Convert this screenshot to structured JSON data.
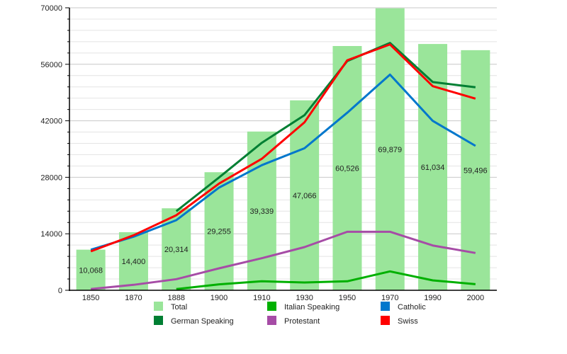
{
  "chart_data": {
    "type": "bar",
    "title": "",
    "xlabel": "",
    "ylabel": "",
    "ylim": [
      0,
      70000
    ],
    "yticks": [
      0,
      14000,
      28000,
      42000,
      56000,
      70000
    ],
    "ytick_labels": [
      "0",
      "14000",
      "28000",
      "42000",
      "56000",
      "70000"
    ],
    "minor_step": 2800,
    "grid": true,
    "legend_position": "bottom",
    "categories": [
      "1850",
      "1870",
      "1888",
      "1900",
      "1910",
      "1930",
      "1950",
      "1970",
      "1990",
      "2000"
    ],
    "bars": {
      "name": "Total",
      "color": "#9ae59a",
      "values": [
        10068,
        14400,
        20314,
        29255,
        39339,
        47066,
        60526,
        69879,
        61034,
        59496
      ],
      "labels": [
        "10,068",
        "14,400",
        "20,314",
        "29,255",
        "39,339",
        "47,066",
        "60,526",
        "69,879",
        "61,034",
        "59,496"
      ]
    },
    "series": [
      {
        "name": "German Speaking",
        "type": "line",
        "color": "#007f33",
        "values": [
          null,
          null,
          19600,
          27950,
          36540,
          43400,
          56800,
          61300,
          51600,
          50300
        ]
      },
      {
        "name": "Italian Speaking",
        "type": "line",
        "color": "#00b000",
        "values": [
          null,
          null,
          300,
          1460,
          2230,
          1930,
          2230,
          4680,
          2460,
          1520
        ]
      },
      {
        "name": "Catholic",
        "type": "line",
        "color": "#0077cc",
        "values": [
          10050,
          13280,
          17370,
          25440,
          31000,
          35200,
          44000,
          53450,
          41980,
          35790
        ]
      },
      {
        "name": "Protestant",
        "type": "line",
        "color": "#a64ca6",
        "values": [
          300,
          1350,
          2750,
          5440,
          7950,
          10700,
          14500,
          14500,
          11100,
          9240
        ]
      },
      {
        "name": "Swiss",
        "type": "line",
        "color": "#ff0000",
        "values": [
          9650,
          13630,
          18600,
          26440,
          32570,
          41630,
          57000,
          60920,
          50580,
          47490
        ]
      }
    ],
    "legend": [
      {
        "name": "Total",
        "color": "#9ae59a"
      },
      {
        "name": "Italian Speaking",
        "color": "#00b000"
      },
      {
        "name": "Catholic",
        "color": "#0077cc"
      },
      {
        "name": "German Speaking",
        "color": "#007f33"
      },
      {
        "name": "Protestant",
        "color": "#a64ca6"
      },
      {
        "name": "Swiss",
        "color": "#ff0000"
      }
    ]
  }
}
